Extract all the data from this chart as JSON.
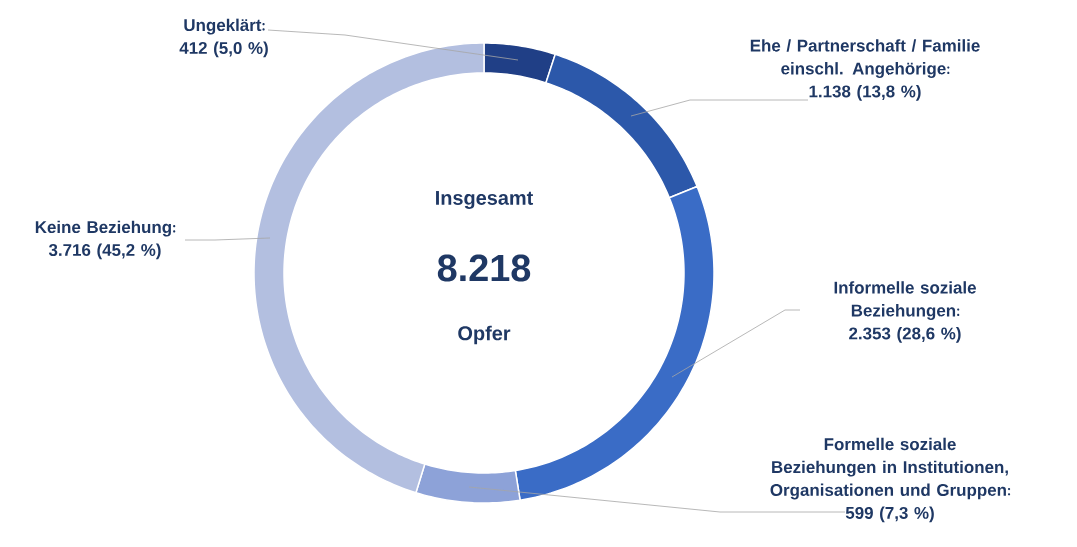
{
  "chart_data": {
    "type": "donut",
    "categories": [
      "Ungeklärt",
      "Ehe / Partnerschaft / Familie einschl. Angehörige",
      "Informelle soziale Beziehungen",
      "Formelle soziale Beziehungen in Institutionen, Organisationen und Gruppen",
      "Keine Beziehung"
    ],
    "values": [
      412,
      1138,
      2353,
      599,
      3716
    ],
    "value_labels": [
      "412 (5,0 %)",
      "1.138 (13,8 %)",
      "2.353 (28,6 %)",
      "599 (7,3 %)",
      "3.716 (45,2 %)"
    ],
    "colors": [
      "#203f86",
      "#2c58aa",
      "#3a6cc6",
      "#8da2d8",
      "#b3bfe0"
    ],
    "annotations": [
      "Insgesamt",
      "8.218",
      "Opfer"
    ]
  }
}
